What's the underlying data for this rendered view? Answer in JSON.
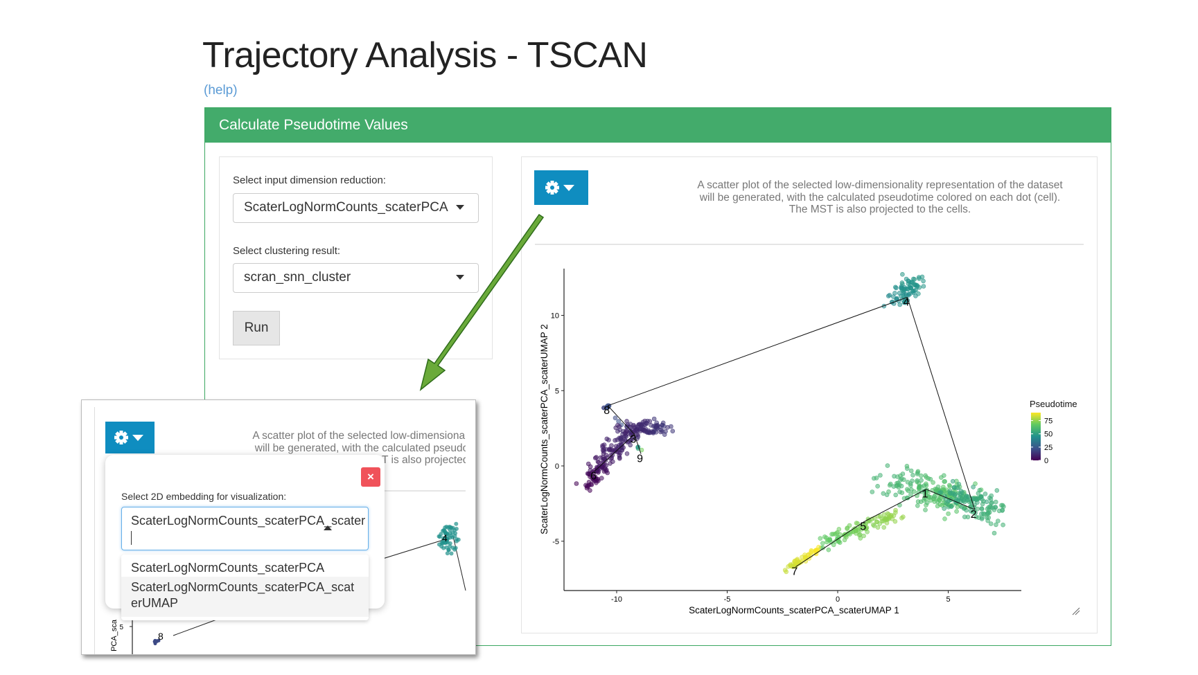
{
  "page": {
    "title": "Trajectory Analysis - TSCAN",
    "help_link": "(help)"
  },
  "box": {
    "header": "Calculate Pseudotime Values"
  },
  "inputs": {
    "dimred_label": "Select input dimension reduction:",
    "dimred_value": "ScaterLogNormCounts_scaterPCA",
    "cluster_label": "Select clustering result:",
    "cluster_value": "scran_snn_cluster",
    "run_label": "Run"
  },
  "plot_panel": {
    "gear_icon": "gear-icon",
    "description_lines": [
      "A scatter plot of the selected low-dimensionality representation of the dataset",
      "will be generated, with the calculated pseudotime colored on each dot (cell).",
      "The MST is also projected to the cells."
    ]
  },
  "popup": {
    "label": "Select 2D embedding for visualization:",
    "input_value": "ScaterLogNormCounts_scaterPCA_scater",
    "close_label": "×",
    "options": [
      "ScaterLogNormCounts_scaterPCA",
      "ScaterLogNormCounts_scaterPCA_scat",
      "erUMAP"
    ],
    "bg_axis_label": "PCA_sca",
    "bg_tick": "5",
    "bg_cluster_labels": [
      "4",
      "8"
    ]
  },
  "colors": {
    "header_green": "#43ab6b",
    "gear_blue": "#0f8dc0",
    "close_red": "#f0525a",
    "arrow_green": "#6aaa3a"
  },
  "chart_data": {
    "type": "scatter",
    "xlabel": "ScaterLogNormCounts_scaterPCA_scaterUMAP 1",
    "ylabel": "ScaterLogNormCounts_scaterPCA_scaterUMAP 2",
    "xlim": [
      -12.4,
      8.3
    ],
    "ylim": [
      -8.2,
      13.1
    ],
    "xticks": [
      "-10",
      "-5",
      "0",
      "5"
    ],
    "yticks": [
      "-5",
      "0",
      "5",
      "10"
    ],
    "grid": false,
    "legend": {
      "title": "Pseudotime",
      "ticks": [
        "0",
        "25",
        "50",
        "75"
      ],
      "range": [
        0,
        90
      ],
      "colormap": "viridis",
      "placement": "right"
    },
    "clusters": [
      {
        "label": "1",
        "x": 4.0,
        "y": -1.55,
        "pseudotime": 62
      },
      {
        "label": "2",
        "x": 6.2,
        "y": -2.9,
        "pseudotime": 55
      },
      {
        "label": "3",
        "x": -9.2,
        "y": 2.1,
        "pseudotime": 10
      },
      {
        "label": "4",
        "x": 3.15,
        "y": 11.2,
        "pseudotime": 45
      },
      {
        "label": "5",
        "x": 1.2,
        "y": -3.7,
        "pseudotime": 72
      },
      {
        "label": "6",
        "x": -11.0,
        "y": -0.35,
        "pseudotime": 3
      },
      {
        "label": "7",
        "x": -1.9,
        "y": -6.7,
        "pseudotime": 88
      },
      {
        "label": "8",
        "x": -10.4,
        "y": 4.0,
        "pseudotime": 22
      },
      {
        "label": "9",
        "x": -8.9,
        "y": 0.8,
        "pseudotime": 85
      }
    ],
    "mst_edges": [
      [
        "4",
        "8"
      ],
      [
        "4",
        "2"
      ],
      [
        "2",
        "1"
      ],
      [
        "1",
        "5"
      ],
      [
        "5",
        "7"
      ],
      [
        "8",
        "3"
      ],
      [
        "3",
        "9"
      ],
      [
        "3",
        "6"
      ]
    ]
  }
}
